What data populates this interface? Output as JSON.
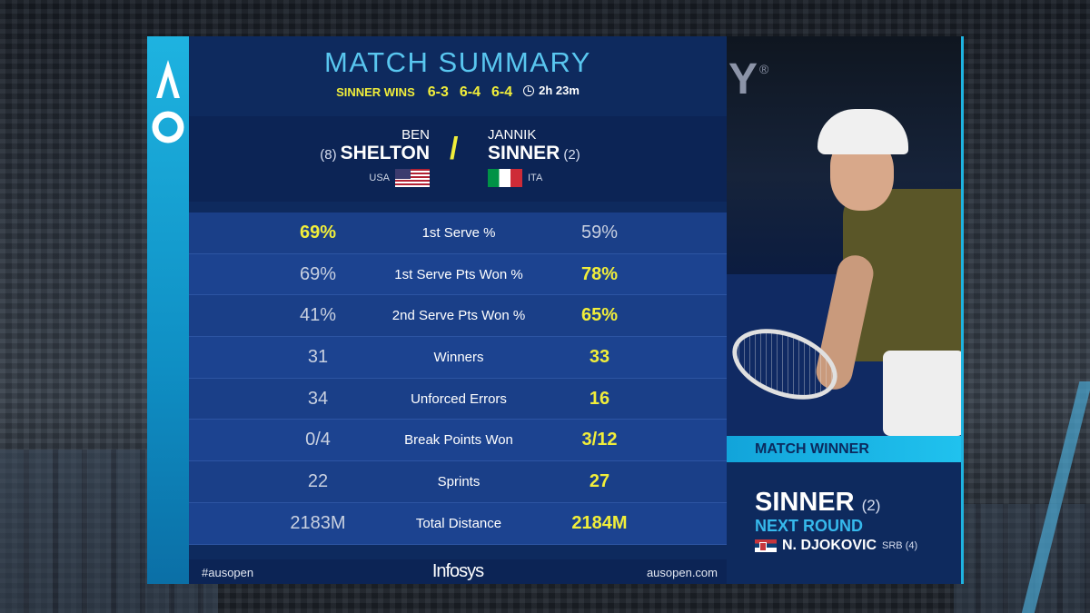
{
  "header": {
    "title": "MATCH SUMMARY",
    "winner_text": "SINNER WINS",
    "sets": [
      "6-3",
      "6-4",
      "6-4"
    ],
    "duration": "2h 23m"
  },
  "players": {
    "left": {
      "first": "BEN",
      "last": "SHELTON",
      "seed": "(8)",
      "country": "USA"
    },
    "right": {
      "first": "JANNIK",
      "last": "SINNER",
      "seed": "(2)",
      "country": "ITA"
    }
  },
  "stats": [
    {
      "label": "1st Serve %",
      "left": "69%",
      "right": "59%",
      "leader": "left"
    },
    {
      "label": "1st Serve Pts Won %",
      "left": "69%",
      "right": "78%",
      "leader": "right"
    },
    {
      "label": "2nd Serve Pts Won %",
      "left": "41%",
      "right": "65%",
      "leader": "right"
    },
    {
      "label": "Winners",
      "left": "31",
      "right": "33",
      "leader": "right"
    },
    {
      "label": "Unforced Errors",
      "left": "34",
      "right": "16",
      "leader": "right"
    },
    {
      "label": "Break Points Won",
      "left": "0/4",
      "right": "3/12",
      "leader": "right"
    },
    {
      "label": "Sprints",
      "left": "22",
      "right": "27",
      "leader": "right"
    },
    {
      "label": "Total Distance",
      "left": "2183M",
      "right": "2184M",
      "leader": "right"
    }
  ],
  "footer": {
    "hashtag": "#ausopen",
    "sponsor": "Infosys",
    "url": "ausopen.com"
  },
  "match_winner": {
    "heading": "MATCH WINNER",
    "name": "SINNER",
    "seed": "(2)",
    "next_round_label": "NEXT ROUND",
    "opponent": "N. DJOKOVIC",
    "opponent_meta": "SRB (4)"
  },
  "colors": {
    "accent_blue": "#1eb3e0",
    "highlight_yellow": "#f1ee3a",
    "panel_navy": "#0e2a5e",
    "row_blue": "#1a3f88"
  },
  "icons": [
    "ao-logo-icon",
    "clock-icon",
    "usa-flag-icon",
    "italy-flag-icon",
    "serbia-flag-icon"
  ]
}
